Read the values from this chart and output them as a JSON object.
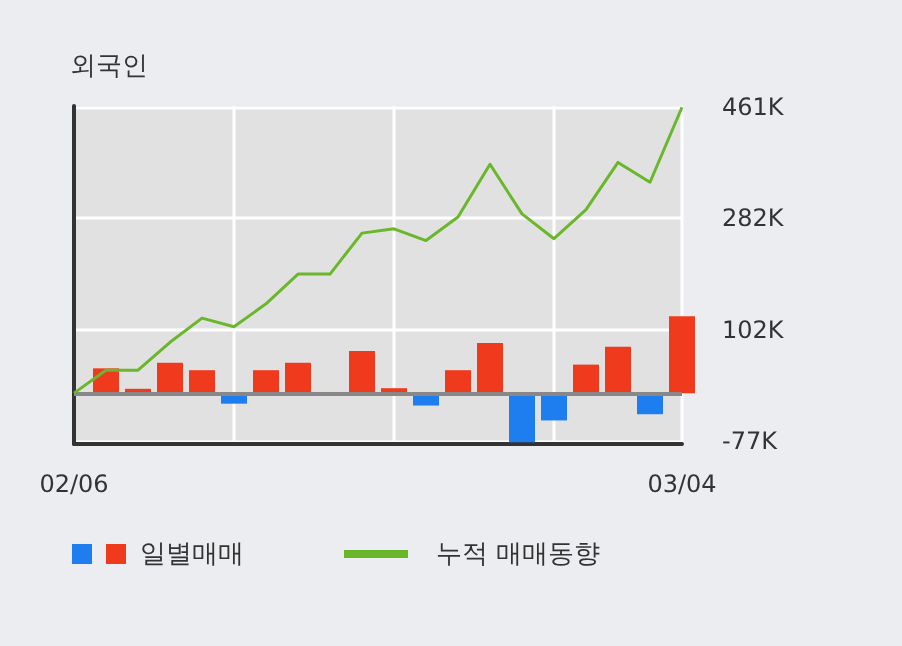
{
  "chart_data": {
    "type": "bar",
    "title": "외국인",
    "categories": [
      "02/06",
      null,
      null,
      null,
      null,
      null,
      null,
      null,
      null,
      null,
      null,
      null,
      null,
      null,
      null,
      null,
      null,
      null,
      null,
      "03/04"
    ],
    "series": [
      {
        "name": "일별매매",
        "colors": [
          null,
          "#f03a1e",
          "#f03a1e",
          "#f03a1e",
          "#f03a1e",
          "#1e7ef0",
          "#f03a1e",
          "#f03a1e",
          null,
          "#f03a1e",
          "#f03a1e",
          "#1e7ef0",
          "#f03a1e",
          "#f03a1e",
          "#1e7ef0",
          "#1e7ef0",
          "#f03a1e",
          "#f03a1e",
          "#1e7ef0",
          "#f03a1e"
        ],
        "values": [
          null,
          40,
          7,
          49,
          37,
          -17,
          37,
          49,
          0,
          68,
          8,
          -20,
          37,
          81,
          -79,
          -44,
          46,
          75,
          -34,
          124
        ]
      },
      {
        "name": "누적 매매동향",
        "type": "line",
        "color": "#6ab72b",
        "values": [
          0,
          37,
          37,
          82,
          121,
          107,
          144,
          192,
          192,
          258,
          265,
          246,
          284,
          369,
          289,
          249,
          296,
          372,
          340,
          461
        ]
      }
    ],
    "ylim": [
      -82,
      463
    ],
    "yticks": [
      {
        "value": -77,
        "label": "-77K"
      },
      {
        "value": 102,
        "label": "102K"
      },
      {
        "value": 282,
        "label": "282K"
      },
      {
        "value": 461,
        "label": "461K"
      }
    ],
    "grid": true,
    "legend": "bottom",
    "marker": "none"
  }
}
